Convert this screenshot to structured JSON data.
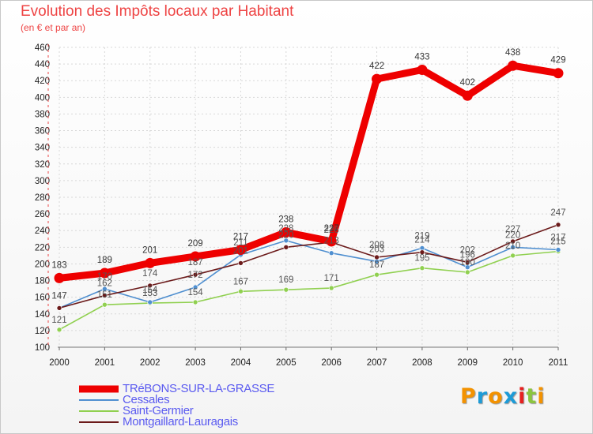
{
  "title": "Evolution des Impôts locaux par Habitant",
  "subtitle": "(en € et par an)",
  "logo": {
    "text": "Proxiti",
    "colors": [
      "#f39200",
      "#1d9bd7",
      "#f39200",
      "#1d9bd7",
      "#e62020",
      "#8bc53f",
      "#f39200"
    ]
  },
  "chart_data": {
    "type": "line",
    "title": "Evolution des Impôts locaux par Habitant",
    "subtitle": "(en € et par an)",
    "xlabel": "",
    "ylabel": "",
    "ylim": [
      100,
      460
    ],
    "ytick_step": 20,
    "yticks": [
      "100",
      "120",
      "140",
      "160",
      "180",
      "200",
      "220",
      "240",
      "260",
      "280",
      "300",
      "320",
      "340",
      "360",
      "380",
      "400",
      "420",
      "440",
      "460"
    ],
    "categories": [
      "2000",
      "2001",
      "2002",
      "2003",
      "2004",
      "2005",
      "2006",
      "2007",
      "2008",
      "2009",
      "2010",
      "2011"
    ],
    "series": [
      {
        "name": "TRéBONS-SUR-LA-GRASSE",
        "color": "#ee0000",
        "values": [
          183,
          189,
          201,
          209,
          217,
          238,
          227,
          422,
          433,
          402,
          438,
          429
        ],
        "labels": [
          "183",
          "189",
          "201",
          "209",
          "217",
          "238",
          "227",
          "422",
          "433",
          "402",
          "438",
          "429"
        ]
      },
      {
        "name": "Cessales",
        "color": "#4f8fd0",
        "values": [
          147,
          170,
          154,
          172,
          211,
          228,
          213,
          203,
          219,
          196,
          220,
          217
        ],
        "labels": [
          "147",
          "170",
          "154",
          "172",
          "211",
          "228",
          "213",
          "203",
          "219",
          "196",
          "220",
          "217"
        ]
      },
      {
        "name": "Saint-Germier",
        "color": "#90d050",
        "values": [
          121,
          151,
          153,
          154,
          167,
          169,
          171,
          187,
          195,
          190,
          210,
          215
        ],
        "labels": [
          "121",
          "151",
          "153",
          "154",
          "167",
          "169",
          "171",
          "187",
          "195",
          "190",
          "210",
          "215"
        ]
      },
      {
        "name": "Montgaillard-Lauragais",
        "color": "#6b1a1a",
        "values": [
          147,
          162,
          174,
          187,
          201,
          220,
          226,
          208,
          214,
          202,
          227,
          247
        ],
        "labels": [
          "147",
          "162",
          "174",
          "187",
          "201",
          "220",
          "226",
          "208",
          "214",
          "202",
          "227",
          "247"
        ]
      }
    ],
    "legend_position": "bottom-left"
  }
}
